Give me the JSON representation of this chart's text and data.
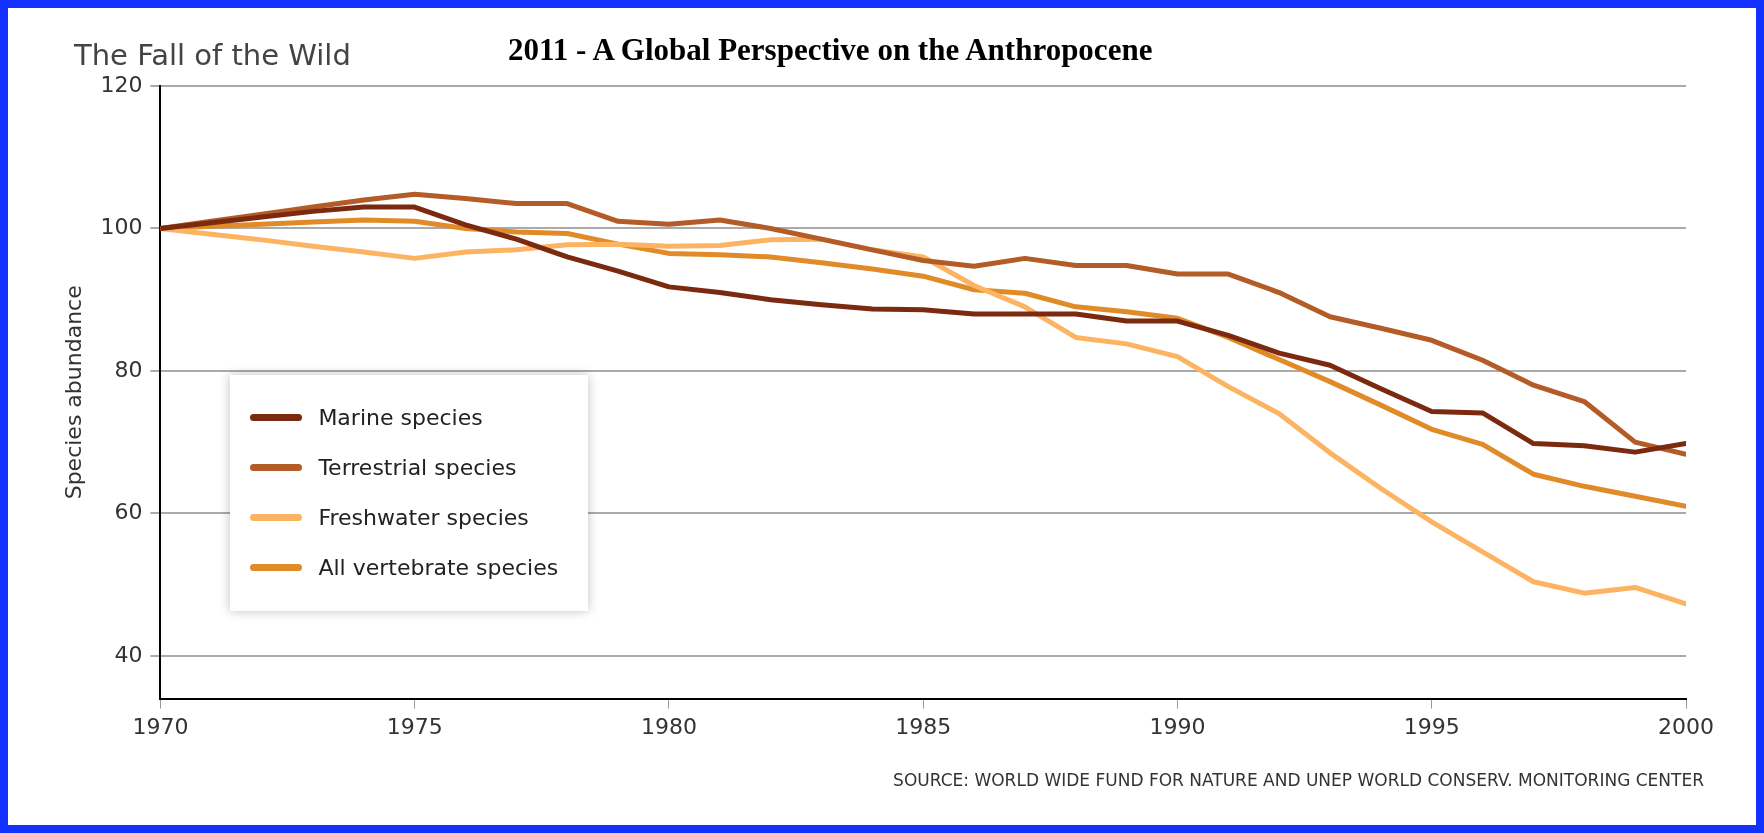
{
  "chart_data": {
    "type": "line",
    "title": "The Fall of the Wild",
    "subtitle": "2011 - A Global Perspective on the Anthropocene",
    "ylabel": "Species abundance",
    "x": [
      1970,
      1971,
      1972,
      1973,
      1974,
      1975,
      1976,
      1977,
      1978,
      1979,
      1980,
      1981,
      1982,
      1983,
      1984,
      1985,
      1986,
      1987,
      1988,
      1989,
      1990,
      1991,
      1992,
      1993,
      1994,
      1995,
      1996,
      1997,
      1998,
      1999,
      2000
    ],
    "series": [
      {
        "name": "Marine species",
        "color": "#7b2a10",
        "values": [
          100,
          100.8,
          101.6,
          102.4,
          103,
          103,
          100.5,
          98.5,
          96,
          94,
          91.8,
          91,
          90,
          89.3,
          88.7,
          88.6,
          88,
          88,
          88,
          87,
          87,
          85,
          82.5,
          80.8,
          77.5,
          74.3,
          74.1,
          69.8,
          69.5,
          68.6,
          69.8
        ]
      },
      {
        "name": "Terrestrial species",
        "color": "#b35c27",
        "values": [
          100,
          101,
          102,
          103,
          104,
          104.8,
          104.2,
          103.5,
          103.5,
          101,
          100.6,
          101.2,
          100,
          98.5,
          97,
          95.5,
          94.7,
          95.8,
          94.8,
          94.8,
          93.6,
          93.6,
          91,
          87.6,
          86,
          84.3,
          81.5,
          78,
          75.7,
          70,
          68.3
        ]
      },
      {
        "name": "Freshwater species",
        "color": "#fdb462",
        "values": [
          100,
          99.2,
          98.4,
          97.5,
          96.7,
          95.8,
          96.7,
          97,
          97.7,
          97.8,
          97.5,
          97.6,
          98.4,
          98.5,
          97,
          96,
          92,
          89,
          84.7,
          83.8,
          82,
          77.8,
          74,
          68.5,
          63.5,
          58.8,
          54.6,
          50.4,
          48.8,
          49.6,
          47.3
        ]
      },
      {
        "name": "All vertebrate species",
        "color": "#e08a28",
        "values": [
          100,
          100.3,
          100.6,
          100.9,
          101.2,
          101,
          100,
          99.5,
          99.3,
          97.8,
          96.5,
          96.3,
          96,
          95.2,
          94.3,
          93.3,
          91.4,
          90.9,
          89,
          88.3,
          87.4,
          84.7,
          81.6,
          78.5,
          75.2,
          71.8,
          69.7,
          65.5,
          63.8,
          62.4,
          61
        ]
      }
    ],
    "xlim": [
      1970,
      2000
    ],
    "xticks": [
      1970,
      1975,
      1980,
      1985,
      1990,
      1995,
      2000
    ],
    "ylim": [
      34,
      120
    ],
    "yticks": [
      40,
      60,
      80,
      100,
      120
    ],
    "grid": "y",
    "legend": "bottom left",
    "marker": "none",
    "line_style": "solid",
    "annotations": [
      "SOURCE: WORLD WIDE FUND FOR NATURE AND UNEP WORLD CONSERV. MONITORING CENTER"
    ]
  }
}
